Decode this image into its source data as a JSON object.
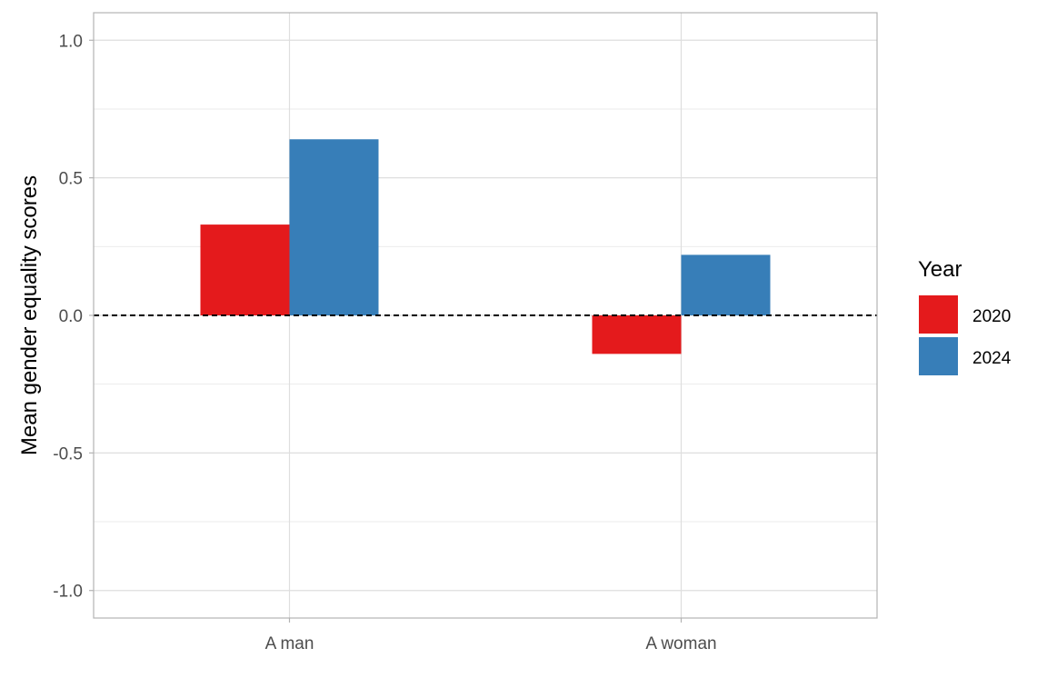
{
  "chart_data": {
    "type": "bar",
    "title": "",
    "xlabel": "",
    "ylabel": "Mean gender equality scores",
    "categories": [
      "A man",
      "A woman"
    ],
    "series": [
      {
        "name": "2020",
        "values": [
          0.33,
          -0.14
        ],
        "color": "#E41A1C"
      },
      {
        "name": "2024",
        "values": [
          0.64,
          0.22
        ],
        "color": "#377EB8"
      }
    ],
    "ylim": [
      -1.1,
      1.1
    ],
    "yticks": [
      {
        "value": -1.0,
        "label": "-1.0"
      },
      {
        "value": -0.5,
        "label": "-0.5"
      },
      {
        "value": 0.0,
        "label": "0.0"
      },
      {
        "value": 0.5,
        "label": "0.5"
      },
      {
        "value": 1.0,
        "label": "1.0"
      }
    ],
    "reference_line": {
      "value": 0,
      "style": "dashed"
    },
    "grid": true,
    "legend": {
      "title": "Year",
      "placement": "right"
    }
  }
}
